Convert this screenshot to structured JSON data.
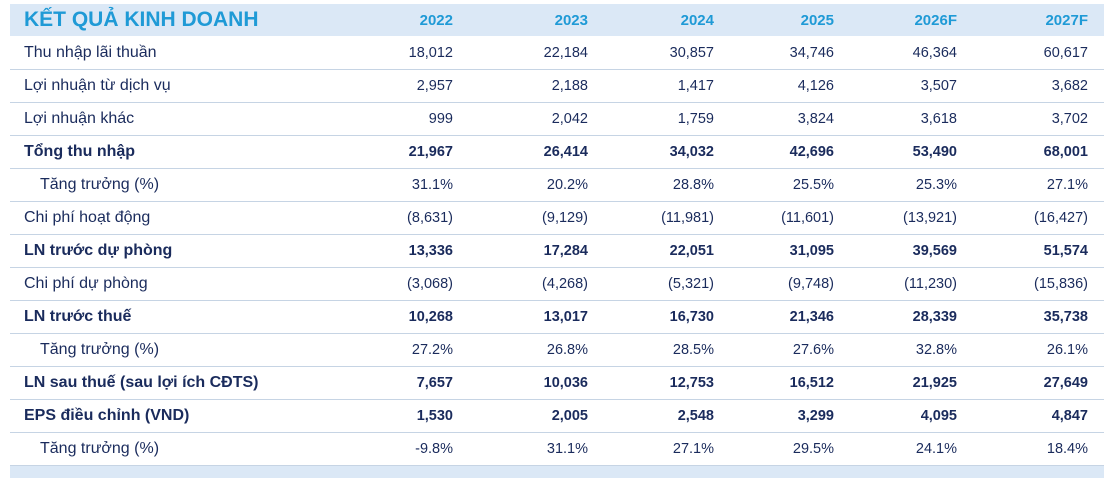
{
  "table": {
    "title": "KẾT QUẢ KINH DOANH",
    "columns": [
      "2022",
      "2023",
      "2024",
      "2025",
      "2026F",
      "2027F"
    ],
    "rows": [
      {
        "label": "Thu nhập lãi thuần",
        "values": [
          "18,012",
          "22,184",
          "30,857",
          "34,746",
          "46,364",
          "60,617"
        ]
      },
      {
        "label": "Lợi nhuận từ dịch vụ",
        "values": [
          "2,957",
          "2,188",
          "1,417",
          "4,126",
          "3,507",
          "3,682"
        ]
      },
      {
        "label": "Lợi nhuận khác",
        "values": [
          "999",
          "2,042",
          "1,759",
          "3,824",
          "3,618",
          "3,702"
        ]
      },
      {
        "label": "Tổng thu nhập",
        "values": [
          "21,967",
          "26,414",
          "34,032",
          "42,696",
          "53,490",
          "68,001"
        ]
      },
      {
        "label": "Tăng trưởng (%)",
        "values": [
          "31.1%",
          "20.2%",
          "28.8%",
          "25.5%",
          "25.3%",
          "27.1%"
        ]
      },
      {
        "label": "Chi phí hoạt động",
        "values": [
          "(8,631)",
          "(9,129)",
          "(11,981)",
          "(11,601)",
          "(13,921)",
          "(16,427)"
        ]
      },
      {
        "label": "LN trước dự phòng",
        "values": [
          "13,336",
          "17,284",
          "22,051",
          "31,095",
          "39,569",
          "51,574"
        ]
      },
      {
        "label": "Chi phí dự phòng",
        "values": [
          "(3,068)",
          "(4,268)",
          "(5,321)",
          "(9,748)",
          "(11,230)",
          "(15,836)"
        ]
      },
      {
        "label": "LN trước thuế",
        "values": [
          "10,268",
          "13,017",
          "16,730",
          "21,346",
          "28,339",
          "35,738"
        ]
      },
      {
        "label": "Tăng trưởng (%)",
        "values": [
          "27.2%",
          "26.8%",
          "28.5%",
          "27.6%",
          "32.8%",
          "26.1%"
        ]
      },
      {
        "label": "LN sau thuế (sau lợi ích CĐTS)",
        "values": [
          "7,657",
          "10,036",
          "12,753",
          "16,512",
          "21,925",
          "27,649"
        ]
      },
      {
        "label": "EPS điều chỉnh (VND)",
        "values": [
          "1,530",
          "2,005",
          "2,548",
          "3,299",
          "4,095",
          "4,847"
        ]
      },
      {
        "label": "Tăng trưởng (%)",
        "values": [
          "-9.8%",
          "31.1%",
          "27.1%",
          "29.5%",
          "24.1%",
          "18.4%"
        ]
      }
    ]
  },
  "colors": {
    "accent": "#1f9ad6",
    "text": "#1a2b5c",
    "band": "#dbe8f6",
    "rule": "#c6d4e4"
  }
}
